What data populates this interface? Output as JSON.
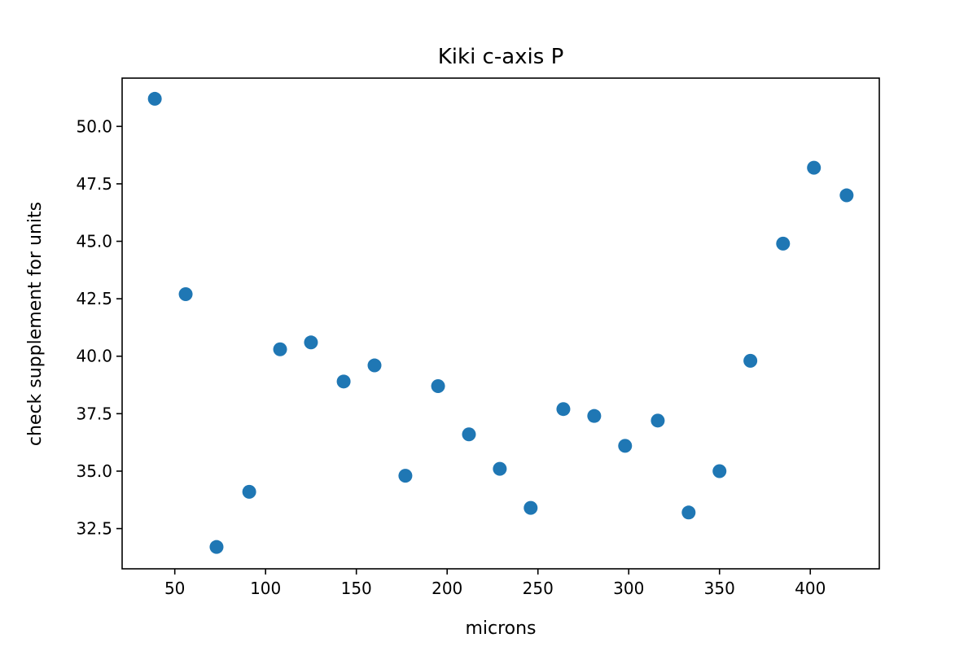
{
  "chart_data": {
    "type": "scatter",
    "title": "Kiki c-axis P",
    "xlabel": "microns",
    "ylabel": "check supplement for units",
    "xlim": [
      21,
      438
    ],
    "ylim": [
      30.75,
      52.1
    ],
    "xticks": [
      50,
      100,
      150,
      200,
      250,
      300,
      350,
      400
    ],
    "yticks": [
      32.5,
      35.0,
      37.5,
      40.0,
      42.5,
      45.0,
      47.5,
      50.0
    ],
    "xtick_labels": [
      "50",
      "100",
      "150",
      "200",
      "250",
      "300",
      "350",
      "400"
    ],
    "ytick_labels": [
      "32.5",
      "35.0",
      "37.5",
      "40.0",
      "42.5",
      "45.0",
      "47.5",
      "50.0"
    ],
    "grid": false,
    "marker_color": "#1f77b4",
    "series": [
      {
        "x": [
          39,
          56,
          73,
          91,
          108,
          125,
          143,
          160,
          177,
          195,
          212,
          229,
          246,
          264,
          281,
          298,
          316,
          333,
          350,
          367,
          385,
          402,
          420
        ],
        "y": [
          51.2,
          42.7,
          31.7,
          34.1,
          40.3,
          40.6,
          38.9,
          39.6,
          34.8,
          38.7,
          36.6,
          35.1,
          33.4,
          37.7,
          37.4,
          36.1,
          37.2,
          33.2,
          35.0,
          39.8,
          44.9,
          48.2,
          47.0
        ]
      }
    ]
  }
}
